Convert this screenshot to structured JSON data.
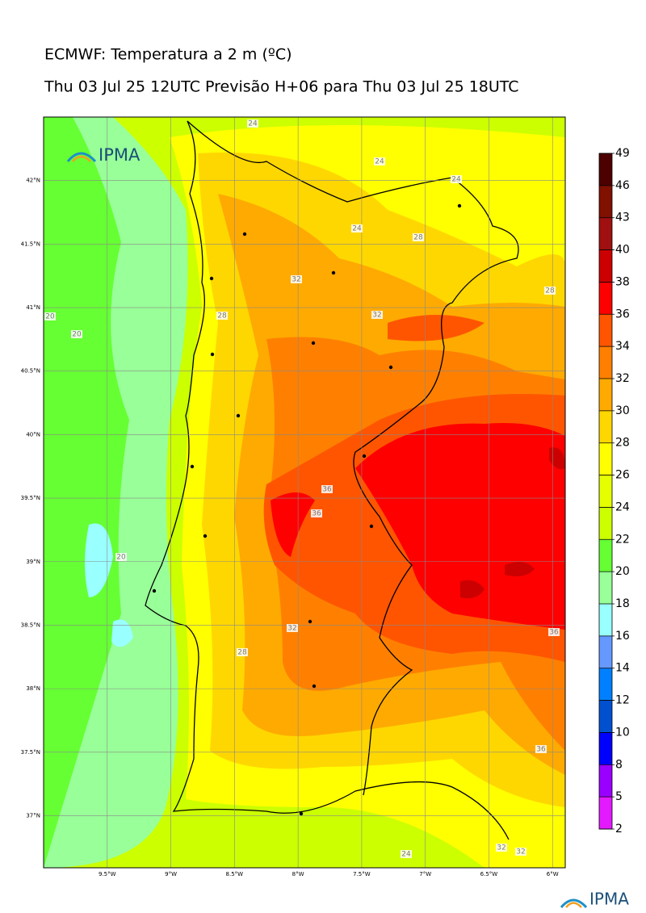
{
  "header": {
    "title": "ECMWF: Temperatura a 2 m (ºC)",
    "subtitle": "Thu 03 Jul 25 12UTC Previsão H+06 para Thu 03 Jul 25 18UTC"
  },
  "logo": {
    "text": "IPMA"
  },
  "footer_logo": {
    "text": "IPMA"
  },
  "map": {
    "xlim": [
      -10,
      -5.9
    ],
    "ylim": [
      36.59,
      42.5
    ],
    "xticks": [
      {
        "value": -9.5,
        "label": "9.5°W"
      },
      {
        "value": -9,
        "label": "9°W"
      },
      {
        "value": -8.5,
        "label": "8.5°W"
      },
      {
        "value": -8,
        "label": "8°W"
      },
      {
        "value": -7.5,
        "label": "7.5°W"
      },
      {
        "value": -7,
        "label": "7°W"
      },
      {
        "value": -6.5,
        "label": "6.5°W"
      },
      {
        "value": -6,
        "label": "6°W"
      }
    ],
    "yticks": [
      {
        "value": 42,
        "label": "42°N"
      },
      {
        "value": 41.5,
        "label": "41.5°N"
      },
      {
        "value": 41,
        "label": "41°N"
      },
      {
        "value": 40.5,
        "label": "40.5°N"
      },
      {
        "value": 40,
        "label": "40°N"
      },
      {
        "value": 39.5,
        "label": "39.5°N"
      },
      {
        "value": 39,
        "label": "39°N"
      },
      {
        "value": 38.5,
        "label": "38.5°N"
      },
      {
        "value": 38,
        "label": "38°N"
      },
      {
        "value": 37.5,
        "label": "37.5°N"
      },
      {
        "value": 37,
        "label": "37°N"
      }
    ],
    "contour_labels": [
      "24",
      "24",
      "24",
      "24",
      "28",
      "28",
      "32",
      "32",
      "28",
      "20",
      "20",
      "36",
      "36",
      "20",
      "32",
      "28",
      "36",
      "36",
      "24",
      "32",
      "32"
    ]
  },
  "colorbar": {
    "ticks": [
      2,
      5,
      8,
      10,
      12,
      14,
      16,
      18,
      20,
      22,
      24,
      26,
      28,
      30,
      32,
      34,
      36,
      38,
      40,
      43,
      46,
      49
    ],
    "colors": [
      "#e31aff",
      "#9900ff",
      "#0000ff",
      "#0050d0",
      "#0080ff",
      "#6699ff",
      "#99ffff",
      "#99ff99",
      "#66ff33",
      "#ccff00",
      "#e5ff00",
      "#ffff00",
      "#ffd700",
      "#ffaa00",
      "#ff8000",
      "#ff5500",
      "#ff0000",
      "#cc0000",
      "#a01010",
      "#801000",
      "#4d0000"
    ]
  }
}
